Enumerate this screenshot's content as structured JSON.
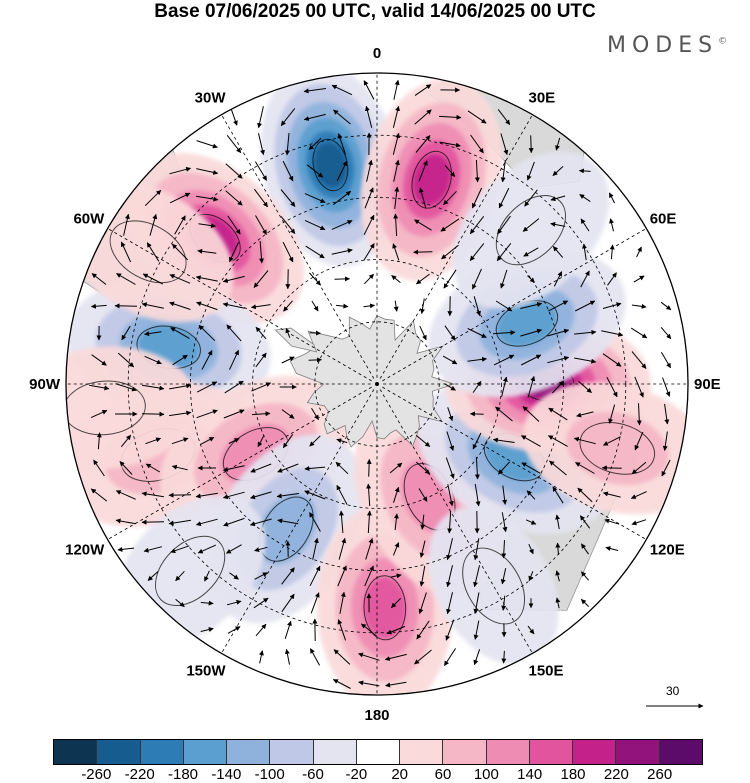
{
  "title": "Base 07/06/2025 00 UTC, valid 14/06/2025 00 UTC",
  "brand": "MODES",
  "brand_mark": "©",
  "longitude_labels": [
    {
      "text": "0",
      "lon": 0
    },
    {
      "text": "30E",
      "lon": 30
    },
    {
      "text": "60E",
      "lon": 60
    },
    {
      "text": "90E",
      "lon": 90
    },
    {
      "text": "120E",
      "lon": 120
    },
    {
      "text": "150E",
      "lon": 150
    },
    {
      "text": "180",
      "lon": 180
    },
    {
      "text": "150W",
      "lon": -150
    },
    {
      "text": "120W",
      "lon": -120
    },
    {
      "text": "90W",
      "lon": -90
    },
    {
      "text": "60W",
      "lon": -60
    },
    {
      "text": "30W",
      "lon": -30
    }
  ],
  "projection": "south-polar-stereographic",
  "reference_vector": "30",
  "colorbar": {
    "colors": [
      "#0d3552",
      "#175c8e",
      "#2d7cb6",
      "#5a9fcf",
      "#8fb2dd",
      "#bfc8e6",
      "#e4e4f1",
      "#ffffff",
      "#fadada",
      "#f5b6c5",
      "#ef8cb3",
      "#e2559e",
      "#c4228a",
      "#93137c",
      "#5c0b6a"
    ],
    "tick_labels": [
      "-260",
      "-220",
      "-180",
      "-140",
      "-100",
      "-60",
      "-20",
      "20",
      "60",
      "100",
      "140",
      "180",
      "220",
      "260"
    ]
  },
  "anomaly_centers": [
    {
      "lon": -12,
      "r": 0.72,
      "value": -240
    },
    {
      "lon": 15,
      "r": 0.68,
      "value": 190
    },
    {
      "lon": -48,
      "r": 0.7,
      "value": 200
    },
    {
      "lon": -80,
      "r": 0.68,
      "value": -150
    },
    {
      "lon": -108,
      "r": 0.74,
      "value": 90
    },
    {
      "lon": -120,
      "r": 0.45,
      "value": 130
    },
    {
      "lon": -148,
      "r": 0.55,
      "value": -130
    },
    {
      "lon": 178,
      "r": 0.72,
      "value": 150
    },
    {
      "lon": 155,
      "r": 0.4,
      "value": 130
    },
    {
      "lon": 118,
      "r": 0.5,
      "value": -150
    },
    {
      "lon": 90,
      "r": 0.55,
      "value": 250
    },
    {
      "lon": 68,
      "r": 0.52,
      "value": -170
    },
    {
      "lon": 45,
      "r": 0.7,
      "value": -60
    },
    {
      "lon": -135,
      "r": 0.85,
      "value": -50
    },
    {
      "lon": -60,
      "r": 0.85,
      "value": 60
    },
    {
      "lon": -95,
      "r": 0.88,
      "value": 60
    },
    {
      "lon": 150,
      "r": 0.75,
      "value": -40
    },
    {
      "lon": 105,
      "r": 0.8,
      "value": 70
    }
  ]
}
